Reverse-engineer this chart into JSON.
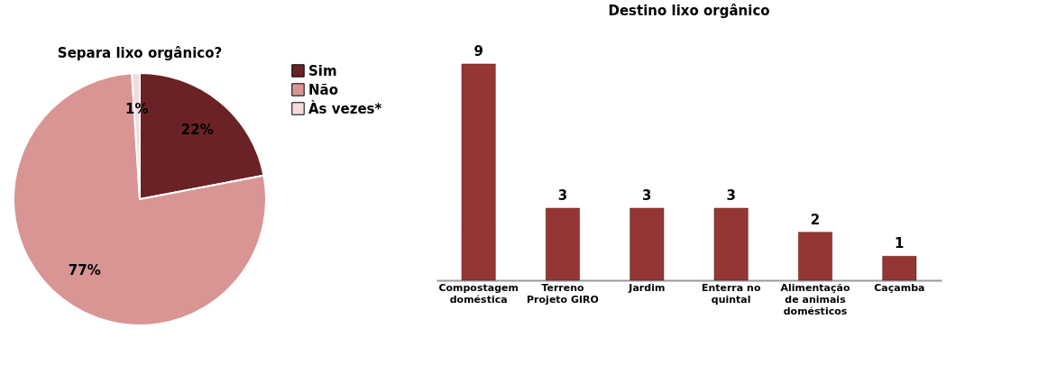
{
  "chart_data": [
    {
      "type": "pie",
      "title": "Separa lixo orgânico?",
      "categories": [
        "Sim",
        "Não",
        "Às vezes*"
      ],
      "values": [
        22,
        77,
        1
      ],
      "colors": [
        "#6b2226",
        "#d99594",
        "#f2dcdb"
      ],
      "value_labels": [
        "22%",
        "77%",
        "1%"
      ],
      "legend": "right"
    },
    {
      "type": "bar",
      "title": "Destino lixo orgânico",
      "categories": [
        "Compostagem doméstica",
        "Terreno Projeto GIRO",
        "Jardim",
        "Enterra no quintal",
        "Alimentação de animais domésticos",
        "Caçamba"
      ],
      "values": [
        9,
        3,
        3,
        3,
        2,
        1
      ],
      "color": "#943634",
      "data_labels": true
    }
  ]
}
